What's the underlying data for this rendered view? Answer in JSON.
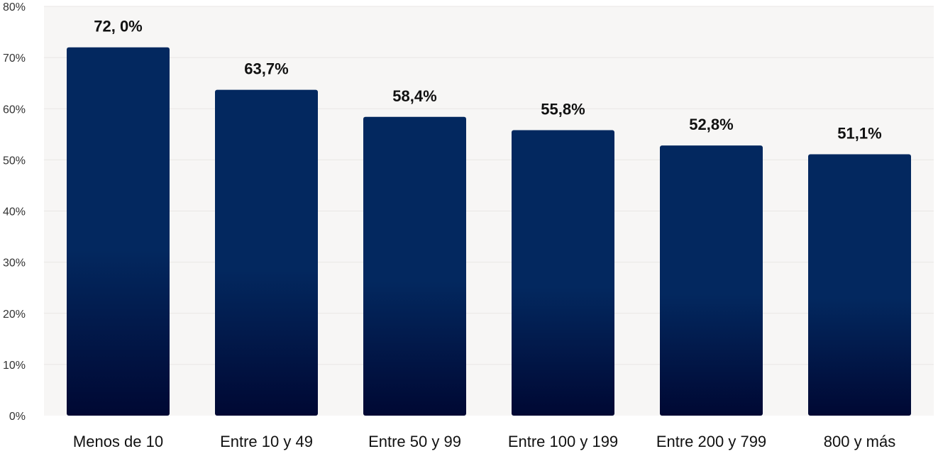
{
  "chart_data": {
    "type": "bar",
    "title": "",
    "xlabel": "",
    "ylabel": "",
    "categories": [
      "Menos de 10",
      "Entre 10 y 49",
      "Entre 50 y 99",
      "Entre 100 y 199",
      "Entre 200 y 799",
      "800 y más"
    ],
    "values": [
      72.0,
      63.7,
      58.4,
      55.8,
      52.8,
      51.1
    ],
    "data_labels": [
      "72, 0%",
      "63,7%",
      "58,4%",
      "55,8%",
      "52,8%",
      "51,1%"
    ],
    "ylim": [
      0,
      80
    ],
    "y_ticks": [
      0,
      10,
      20,
      30,
      40,
      50,
      60,
      70,
      80
    ],
    "y_tick_labels": [
      "0%",
      "10%",
      "20%",
      "30%",
      "40%",
      "50%",
      "60%",
      "70%",
      "80%"
    ],
    "grid": true,
    "legend": "none"
  },
  "colors": {
    "plot_background": "#f7f6f5",
    "gridline": "#e9e7e5",
    "bar_top": "#03285f",
    "bar_bottom": "#000833",
    "text": "#111111",
    "axis_text": "#333333"
  }
}
